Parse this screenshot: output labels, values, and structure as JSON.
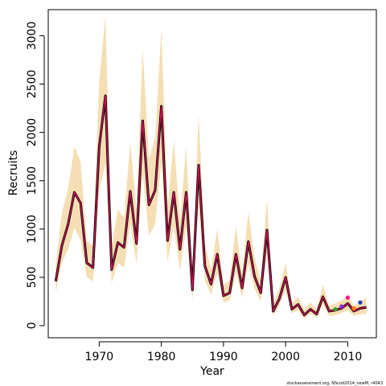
{
  "chart_data": {
    "type": "line",
    "title": "",
    "xlabel": "Year",
    "ylabel": "Recruits",
    "x_ticks": [
      1970,
      1980,
      1990,
      2000,
      2010
    ],
    "y_ticks": [
      0,
      500,
      1000,
      1500,
      2000,
      2500,
      3000
    ],
    "xlim": [
      1961.8,
      2014.6
    ],
    "ylim": [
      -125,
      3270
    ],
    "footer": "stockassessment.org, NScod2014_newM, r4043",
    "colors": {
      "band": "#f5deb3",
      "estimate": "#000000",
      "overlay": "#e0115f",
      "retro": [
        "#33a02c",
        "#8a2be2",
        "#ff1493",
        "#ff7f00",
        "#1f3fbf"
      ]
    },
    "series": [
      {
        "x": [
          1963,
          1964,
          1965,
          1966,
          1967,
          1968,
          1969,
          1970,
          1971,
          1972,
          1973,
          1974,
          1975,
          1976,
          1977,
          1978,
          1979,
          1980,
          1981,
          1982,
          1983,
          1984,
          1985,
          1986,
          1987,
          1988,
          1989,
          1990,
          1991,
          1992,
          1993,
          1994,
          1995,
          1996,
          1997,
          1998,
          1999,
          2000,
          2001,
          2002,
          2003,
          2004,
          2005,
          2006,
          2007,
          2008,
          2009,
          2010,
          2011,
          2012,
          2013
        ],
        "values": [
          460,
          830,
          1050,
          1380,
          1270,
          650,
          600,
          1850,
          2380,
          580,
          860,
          810,
          1390,
          850,
          2120,
          1250,
          1400,
          2270,
          880,
          1380,
          790,
          1380,
          370,
          1660,
          620,
          430,
          740,
          310,
          340,
          740,
          390,
          870,
          510,
          340,
          990,
          150,
          280,
          500,
          170,
          220,
          110,
          170,
          120,
          300,
          150,
          160,
          180,
          230,
          150,
          180,
          190
        ],
        "lower": [
          340,
          650,
          790,
          1010,
          890,
          500,
          460,
          1400,
          1680,
          440,
          650,
          600,
          1060,
          640,
          1580,
          930,
          1050,
          1690,
          660,
          1030,
          570,
          1020,
          270,
          1250,
          470,
          320,
          550,
          240,
          260,
          550,
          290,
          640,
          380,
          250,
          740,
          100,
          210,
          370,
          130,
          160,
          70,
          120,
          80,
          220,
          100,
          110,
          130,
          160,
          100,
          120,
          120
        ],
        "upper": [
          620,
          1170,
          1420,
          1850,
          1700,
          880,
          820,
          2520,
          3210,
          810,
          1200,
          1120,
          1900,
          1190,
          2870,
          1720,
          1940,
          3070,
          1220,
          1920,
          1090,
          1850,
          510,
          2180,
          850,
          580,
          1000,
          420,
          470,
          1030,
          540,
          1180,
          700,
          470,
          1320,
          220,
          390,
          650,
          230,
          300,
          170,
          240,
          170,
          420,
          210,
          230,
          260,
          320,
          200,
          250,
          290
        ]
      }
    ],
    "retro_points": [
      {
        "x": 2008,
        "y": 170
      },
      {
        "x": 2009,
        "y": 200
      },
      {
        "x": 2010,
        "y": 290
      },
      {
        "x": 2011,
        "y": 180
      },
      {
        "x": 2012,
        "y": 240
      }
    ]
  }
}
